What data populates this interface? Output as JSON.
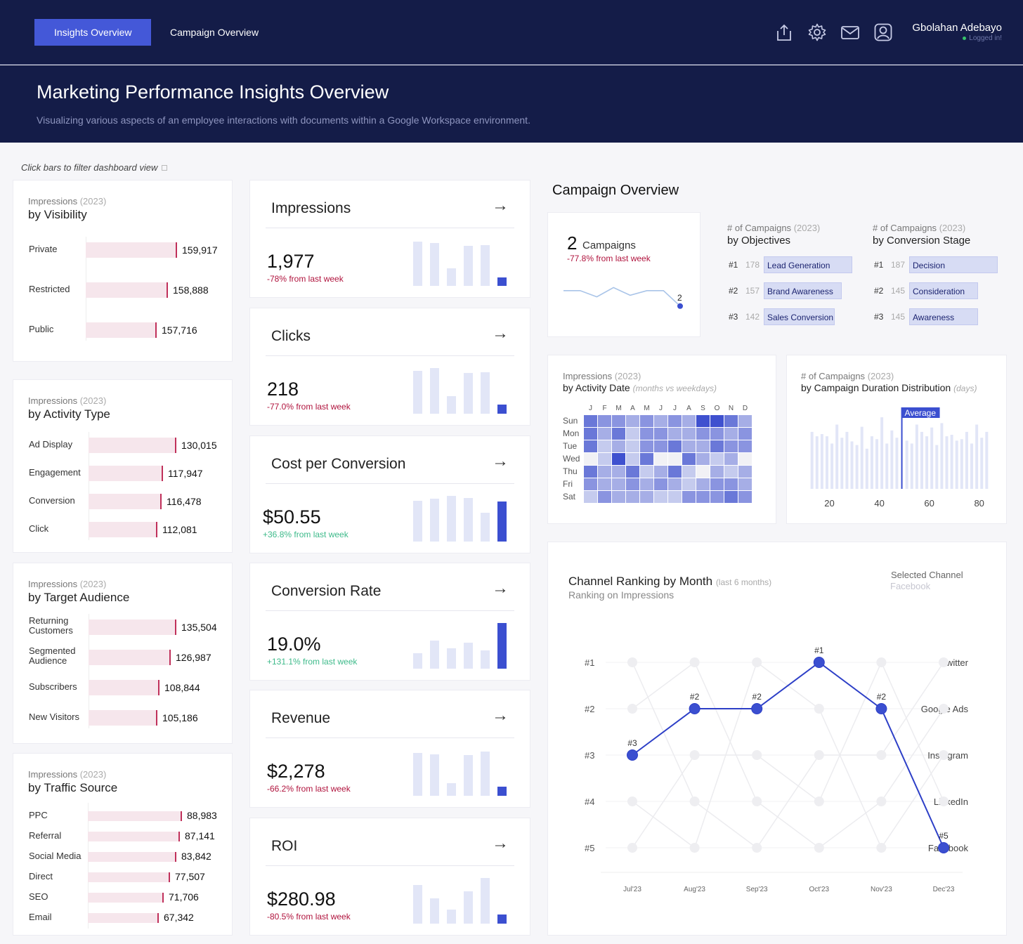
{
  "nav": {
    "tabs": [
      "Insights Overview",
      "Campaign Overview"
    ]
  },
  "user": {
    "name": "Gbolahan Adebayo",
    "status": "Logged in!"
  },
  "hero": {
    "title": "Marketing Performance Insights Overview",
    "subtitle": "Visualizing various aspects of an employee interactions with documents within a Google Workspace environment."
  },
  "hint": "Click bars to filter dashboard view",
  "breakdowns": [
    {
      "label": "Impressions",
      "year": "(2023)",
      "title": "by Visibility",
      "rows": [
        {
          "name": "Private",
          "value": 159917,
          "display": "159,917"
        },
        {
          "name": "Restricted",
          "value": 158888,
          "display": "158,888"
        },
        {
          "name": "Public",
          "value": 157716,
          "display": "157,716"
        }
      ]
    },
    {
      "label": "Impressions",
      "year": "(2023)",
      "title": "by Activity Type",
      "rows": [
        {
          "name": "Ad Display",
          "value": 130015,
          "display": "130,015"
        },
        {
          "name": "Engagement",
          "value": 117947,
          "display": "117,947"
        },
        {
          "name": "Conversion",
          "value": 116478,
          "display": "116,478"
        },
        {
          "name": "Click",
          "value": 112081,
          "display": "112,081"
        }
      ]
    },
    {
      "label": "Impressions",
      "year": "(2023)",
      "title": "by Target Audience",
      "rows": [
        {
          "name": "Returning Customers",
          "value": 135504,
          "display": "135,504"
        },
        {
          "name": "Segmented Audience",
          "value": 126987,
          "display": "126,987"
        },
        {
          "name": "Subscribers",
          "value": 108844,
          "display": "108,844"
        },
        {
          "name": "New Visitors",
          "value": 105186,
          "display": "105,186"
        }
      ]
    },
    {
      "label": "Impressions",
      "year": "(2023)",
      "title": "by Traffic Source",
      "rows": [
        {
          "name": "PPC",
          "value": 88983,
          "display": "88,983"
        },
        {
          "name": "Referral",
          "value": 87141,
          "display": "87,141"
        },
        {
          "name": "Social Media",
          "value": 83842,
          "display": "83,842"
        },
        {
          "name": "Direct",
          "value": 77507,
          "display": "77,507"
        },
        {
          "name": "SEO",
          "value": 71706,
          "display": "71,706"
        },
        {
          "name": "Email",
          "value": 67342,
          "display": "67,342"
        }
      ]
    }
  ],
  "kpis": [
    {
      "title": "Impressions",
      "value": "1,977",
      "change": "-78% from last week",
      "trend": "neg",
      "spark": [
        0.95,
        0.92,
        0.38,
        0.86,
        0.88,
        0.18
      ]
    },
    {
      "title": "Clicks",
      "value": "218",
      "change": "-77.0% from last week",
      "trend": "neg",
      "spark": [
        0.93,
        0.98,
        0.38,
        0.88,
        0.9,
        0.2
      ]
    },
    {
      "title": "Cost per Conversion",
      "value": "$50.55",
      "change": "+36.8% from last week",
      "trend": "pos",
      "spark": [
        0.88,
        0.92,
        0.98,
        0.94,
        0.62,
        0.86
      ]
    },
    {
      "title": "Conversion Rate",
      "value": "19.0%",
      "change": "+131.1% from last week",
      "trend": "pos",
      "spark": [
        0.33,
        0.6,
        0.44,
        0.56,
        0.4,
        0.98
      ]
    },
    {
      "title": "Revenue",
      "value": "$2,278",
      "change": "-66.2% from last week",
      "trend": "neg",
      "spark": [
        0.92,
        0.9,
        0.28,
        0.88,
        0.96,
        0.2
      ]
    },
    {
      "title": "ROI",
      "value": "$280.98",
      "change": "-80.5% from last week",
      "trend": "neg",
      "spark": [
        0.83,
        0.55,
        0.3,
        0.7,
        0.98,
        0.19
      ]
    }
  ],
  "campaign": {
    "heading": "Campaign Overview",
    "count": "2",
    "count_label": "Campaigns",
    "change": "-77.8% from last week",
    "trend": [
      3.2,
      3.2,
      2.8,
      3.4,
      2.9,
      3.2,
      3.2,
      2.2
    ],
    "end_label": "2",
    "objectives": {
      "label": "# of Campaigns",
      "year": "(2023)",
      "title": "by Objectives",
      "rows": [
        {
          "rank": "#1",
          "count": "178",
          "name": "Lead Generation",
          "value": 178
        },
        {
          "rank": "#2",
          "count": "157",
          "name": "Brand Awareness",
          "value": 157
        },
        {
          "rank": "#3",
          "count": "142",
          "name": "Sales Conversion",
          "value": 142
        }
      ]
    },
    "stages": {
      "label": "# of Campaigns",
      "year": "(2023)",
      "title": "by Conversion Stage",
      "rows": [
        {
          "rank": "#1",
          "count": "187",
          "name": "Decision",
          "value": 187
        },
        {
          "rank": "#2",
          "count": "145",
          "name": "Consideration",
          "value": 145
        },
        {
          "rank": "#3",
          "count": "145",
          "name": "Awareness",
          "value": 145
        }
      ]
    }
  },
  "heatmap": {
    "label": "Impressions",
    "year": "(2023)",
    "title": "by Activity Date",
    "note": "(months vs weekdays)",
    "months": [
      "J",
      "F",
      "M",
      "A",
      "M",
      "J",
      "J",
      "A",
      "S",
      "O",
      "N",
      "D"
    ],
    "days": [
      "Sun",
      "Mon",
      "Tue",
      "Wed",
      "Thu",
      "Fri",
      "Sat"
    ],
    "levels": [
      [
        4,
        3,
        3,
        2,
        3,
        2,
        3,
        2,
        5,
        5,
        4,
        2
      ],
      [
        4,
        2,
        4,
        1,
        3,
        3,
        2,
        2,
        3,
        3,
        2,
        3
      ],
      [
        4,
        1,
        2,
        1,
        3,
        3,
        4,
        2,
        2,
        4,
        3,
        3
      ],
      [
        0,
        1,
        5,
        1,
        4,
        0,
        0,
        4,
        2,
        1,
        2,
        0
      ],
      [
        4,
        2,
        2,
        4,
        1,
        2,
        4,
        1,
        0,
        2,
        1,
        2
      ],
      [
        3,
        2,
        2,
        3,
        2,
        3,
        2,
        1,
        2,
        3,
        3,
        2
      ],
      [
        1,
        3,
        2,
        2,
        2,
        1,
        1,
        3,
        3,
        3,
        4,
        3
      ]
    ]
  },
  "duration": {
    "label": "# of Campaigns",
    "year": "(2023)",
    "title": "by Campaign Duration Distribution",
    "unit": "(days)",
    "average_label": "Average",
    "average": 49,
    "x_ticks": [
      "20",
      "40",
      "60",
      "80"
    ],
    "xlim": [
      10,
      86
    ],
    "bins": [
      {
        "x": 13,
        "y": 0.78
      },
      {
        "x": 15,
        "y": 0.72
      },
      {
        "x": 17,
        "y": 0.75
      },
      {
        "x": 19,
        "y": 0.72
      },
      {
        "x": 21,
        "y": 0.62
      },
      {
        "x": 23,
        "y": 0.88
      },
      {
        "x": 25,
        "y": 0.7
      },
      {
        "x": 27,
        "y": 0.78
      },
      {
        "x": 29,
        "y": 0.65
      },
      {
        "x": 31,
        "y": 0.6
      },
      {
        "x": 33,
        "y": 0.85
      },
      {
        "x": 35,
        "y": 0.55
      },
      {
        "x": 37,
        "y": 0.72
      },
      {
        "x": 39,
        "y": 0.68
      },
      {
        "x": 41,
        "y": 0.98
      },
      {
        "x": 43,
        "y": 0.62
      },
      {
        "x": 45,
        "y": 0.8
      },
      {
        "x": 47,
        "y": 0.7
      },
      {
        "x": 51,
        "y": 0.66
      },
      {
        "x": 53,
        "y": 0.62
      },
      {
        "x": 55,
        "y": 0.88
      },
      {
        "x": 57,
        "y": 0.78
      },
      {
        "x": 59,
        "y": 0.72
      },
      {
        "x": 61,
        "y": 0.84
      },
      {
        "x": 63,
        "y": 0.6
      },
      {
        "x": 65,
        "y": 0.9
      },
      {
        "x": 67,
        "y": 0.72
      },
      {
        "x": 69,
        "y": 0.74
      },
      {
        "x": 71,
        "y": 0.66
      },
      {
        "x": 73,
        "y": 0.68
      },
      {
        "x": 75,
        "y": 0.78
      },
      {
        "x": 77,
        "y": 0.62
      },
      {
        "x": 79,
        "y": 0.88
      },
      {
        "x": 81,
        "y": 0.7
      },
      {
        "x": 83,
        "y": 0.78
      }
    ]
  },
  "chart_data": {
    "type": "line",
    "title": "Channel Ranking by Month",
    "title_note": "(last 6 months)",
    "subtitle": "Ranking on Impressions",
    "selected_label": "Selected Channel",
    "selected_value": "Facebook",
    "x": [
      "Jul'23",
      "Aug'23",
      "Sep'23",
      "Oct'23",
      "Nov'23",
      "Dec'23"
    ],
    "rank_labels": [
      "#1",
      "#2",
      "#3",
      "#4",
      "#5"
    ],
    "end_channels": [
      "Twitter",
      "Google Ads",
      "Instagram",
      "LinkedIn",
      "Facebook"
    ],
    "ylim": [
      1,
      5
    ],
    "series": [
      {
        "name": "Facebook",
        "selected": true,
        "values": [
          3,
          2,
          2,
          1,
          2,
          5
        ],
        "point_labels": [
          "#3",
          "#2",
          "#2",
          "#1",
          "#2",
          "#5"
        ]
      },
      {
        "name": "Twitter",
        "values": [
          1,
          4,
          5,
          3,
          3,
          1
        ]
      },
      {
        "name": "Google Ads",
        "values": [
          2,
          1,
          4,
          5,
          4,
          2
        ]
      },
      {
        "name": "Instagram",
        "values": [
          4,
          5,
          1,
          2,
          5,
          3
        ]
      },
      {
        "name": "LinkedIn",
        "values": [
          5,
          3,
          3,
          4,
          1,
          4
        ]
      }
    ]
  },
  "colors": {
    "accent": "#4458d8",
    "navy": "#141c48",
    "bar_bg": "#f6e6ec",
    "bar_mark": "#c0305a",
    "selected_line": "#2d3fc7"
  }
}
